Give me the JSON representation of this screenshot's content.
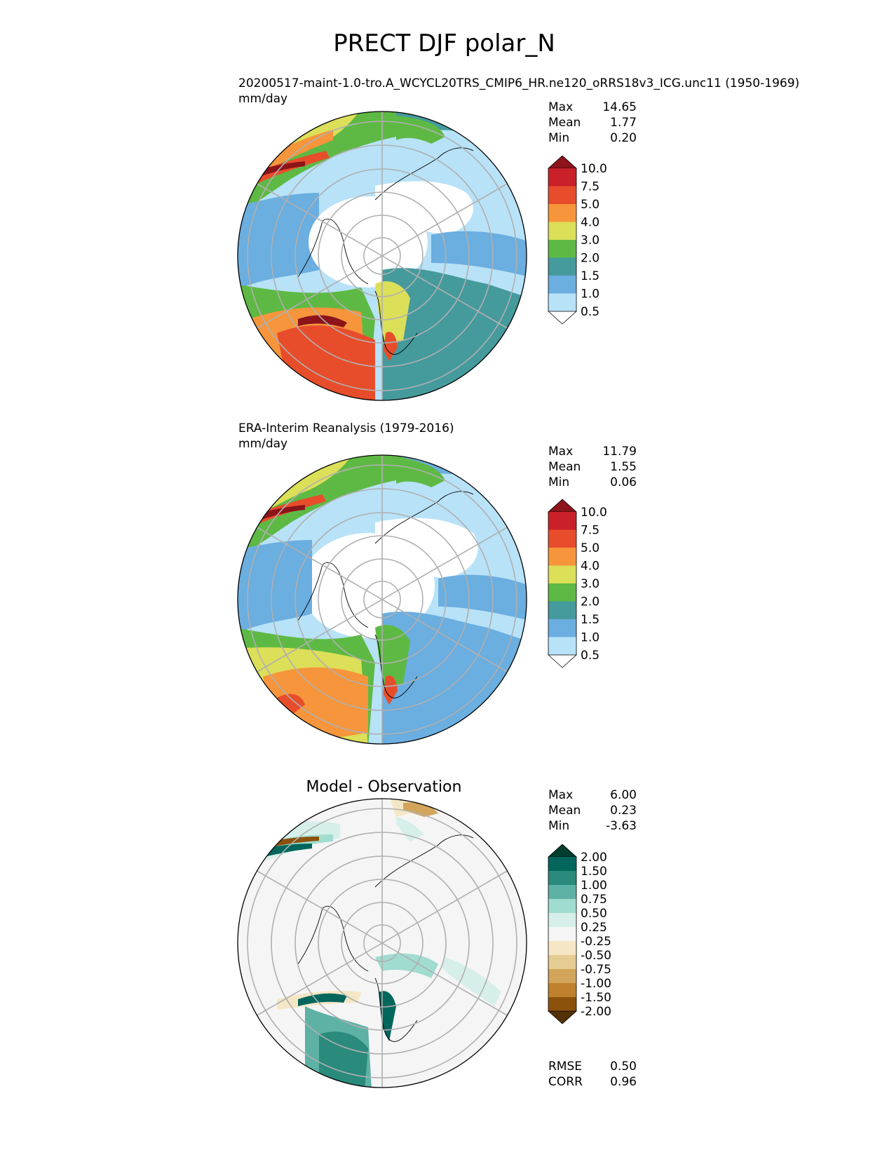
{
  "figure": {
    "title": "PRECT DJF polar_N"
  },
  "panels": [
    {
      "name": "test",
      "subtitle": "20200517-maint-1.0-tro.A_WCYCL20TRS_CMIP6_HR.ne120_oRRS18v3_ICG.unc11 (1950-1969)",
      "units": "mm/day",
      "stats": [
        {
          "label": "Max",
          "value": "14.65"
        },
        {
          "label": "Mean",
          "value": "1.77"
        },
        {
          "label": "Min",
          "value": "0.20"
        }
      ]
    },
    {
      "name": "reference",
      "subtitle": "ERA-Interim Reanalysis (1979-2016)",
      "units": "mm/day",
      "stats": [
        {
          "label": "Max",
          "value": "11.79"
        },
        {
          "label": "Mean",
          "value": "1.55"
        },
        {
          "label": "Min",
          "value": "0.06"
        }
      ]
    },
    {
      "name": "difference",
      "title": "Model - Observation",
      "stats": [
        {
          "label": "Max",
          "value": "6.00"
        },
        {
          "label": "Mean",
          "value": "0.23"
        },
        {
          "label": "Min",
          "value": "-3.63"
        }
      ],
      "metrics": [
        {
          "label": "RMSE",
          "value": "0.50"
        },
        {
          "label": "CORR",
          "value": "0.96"
        }
      ]
    }
  ],
  "colorbars": {
    "main": {
      "levels": [
        "0.5",
        "1.0",
        "1.5",
        "2.0",
        "3.0",
        "4.0",
        "5.0",
        "7.5",
        "10.0"
      ],
      "colors": [
        "#ffffff",
        "#b8e2f7",
        "#6baee0",
        "#459a9c",
        "#5eb944",
        "#dcdf58",
        "#f6953b",
        "#e84d2b",
        "#c9202a",
        "#8c141a"
      ]
    },
    "diff": {
      "levels": [
        "-2.00",
        "-1.50",
        "-1.00",
        "-0.75",
        "-0.50",
        "-0.25",
        "0.25",
        "0.50",
        "0.75",
        "1.00",
        "1.50",
        "2.00"
      ],
      "colors": [
        "#543005",
        "#8c510a",
        "#bf812d",
        "#d2a55b",
        "#e5cc92",
        "#f5e7c5",
        "#f5f5f5",
        "#d7efea",
        "#a0dccf",
        "#5db2a5",
        "#2a8a7c",
        "#02665c",
        "#003c30"
      ]
    }
  }
}
